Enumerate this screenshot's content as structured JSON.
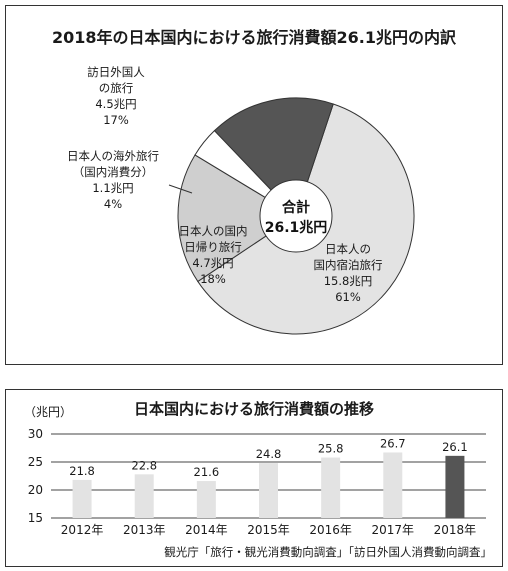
{
  "chart_data": [
    {
      "type": "pie",
      "title": "2018年の日本国内における旅行消費額26.1兆円の内訳",
      "center_label": [
        "合計",
        "26.1兆円"
      ],
      "slices": [
        {
          "label": [
            "日本人の",
            "国内宿泊旅行"
          ],
          "value_text": "15.8兆円",
          "percent_text": "61%",
          "value": 15.8,
          "color": "#e3e3e3"
        },
        {
          "label": [
            "日本人の国内",
            "日帰り旅行"
          ],
          "value_text": "4.7兆円",
          "percent_text": "18%",
          "value": 4.7,
          "color": "#cfcfcf"
        },
        {
          "label": [
            "日本人の海外旅行",
            "（国内消費分）"
          ],
          "value_text": "1.1兆円",
          "percent_text": "4%",
          "value": 1.1,
          "color": "#ffffff"
        },
        {
          "label": [
            "訪日外国人",
            "の旅行"
          ],
          "value_text": "4.5兆円",
          "percent_text": "17%",
          "value": 4.5,
          "color": "#555555"
        }
      ]
    },
    {
      "type": "bar",
      "title": "日本国内における旅行消費額の推移",
      "ylabel": "（兆円）",
      "categories": [
        "2012年",
        "2013年",
        "2014年",
        "2015年",
        "2016年",
        "2017年",
        "2018年"
      ],
      "values": [
        21.8,
        22.8,
        21.6,
        24.8,
        25.8,
        26.7,
        26.1
      ],
      "ylim": [
        15,
        30
      ],
      "yticks": [
        "15",
        "20",
        "25",
        "30"
      ],
      "grid": true,
      "bar_color": "#e3e3e3",
      "highlight_color": "#555555",
      "highlight_index": 6,
      "source": "観光庁「旅行・観光消費動向調査」「訪日外国人消費動向調査」"
    }
  ]
}
